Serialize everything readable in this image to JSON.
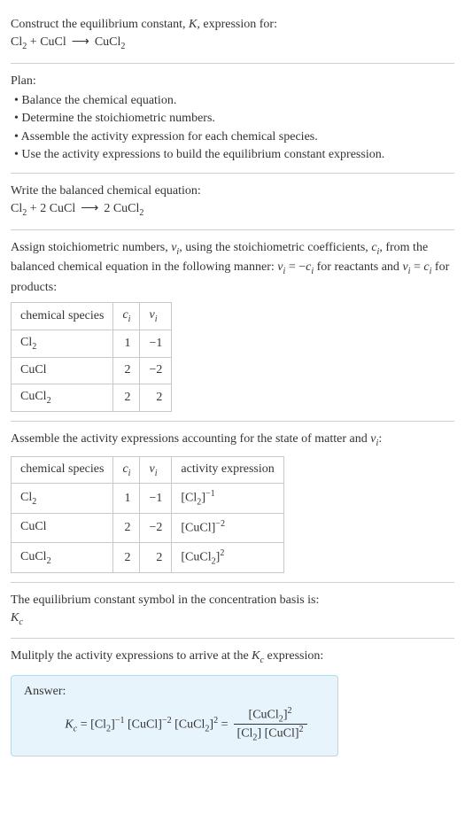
{
  "colors": {
    "text": "#333333",
    "border": "#d0d0d0",
    "tableBorder": "#c8c8c8",
    "answerBg": "#e8f4fb",
    "answerBorder": "#b8d8ea",
    "bg": "#ffffff"
  },
  "fonts": {
    "body": 14,
    "sub": 0.72
  },
  "header": {
    "prompt_prefix": "Construct the equilibrium constant, ",
    "K": "K",
    "prompt_suffix": ", expression for:",
    "eq_lhs_a": "Cl",
    "eq_lhs_a_sub": "2",
    "plus": " + ",
    "eq_lhs_b": "CuCl",
    "arrow": "⟶",
    "eq_rhs": "CuCl",
    "eq_rhs_sub": "2"
  },
  "plan": {
    "title": "Plan:",
    "items": [
      "Balance the chemical equation.",
      "Determine the stoichiometric numbers.",
      "Assemble the activity expression for each chemical species.",
      "Use the activity expressions to build the equilibrium constant expression."
    ]
  },
  "balanced": {
    "title": "Write the balanced chemical equation:",
    "a": "Cl",
    "a_sub": "2",
    "plus": " + ",
    "b_coef": "2 ",
    "b": "CuCl",
    "arrow": "⟶",
    "c_coef": "2 ",
    "c": "CuCl",
    "c_sub": "2"
  },
  "stoich": {
    "line1_a": "Assign stoichiometric numbers, ",
    "nu": "ν",
    "nu_sub": "i",
    "line1_b": ", using the stoichiometric coefficients, ",
    "c": "c",
    "c_sub": "i",
    "line1_c": ", from the balanced chemical equation in the following manner: ",
    "rel1_a": "ν",
    "rel1_b": " = −",
    "rel1_c": "c",
    "line1_d": " for reactants and ",
    "rel2_a": "ν",
    "rel2_b": " = ",
    "rel2_c": "c",
    "line1_e": " for products:",
    "table": {
      "h1": "chemical species",
      "h2_a": "c",
      "h2_b": "i",
      "h3_a": "ν",
      "h3_b": "i",
      "rows": [
        {
          "sp_a": "Cl",
          "sp_sub": "2",
          "ci": "1",
          "vi": "−1"
        },
        {
          "sp_a": "CuCl",
          "sp_sub": "",
          "ci": "2",
          "vi": "−2"
        },
        {
          "sp_a": "CuCl",
          "sp_sub": "2",
          "ci": "2",
          "vi": "2"
        }
      ]
    }
  },
  "activity": {
    "line_a": "Assemble the activity expressions accounting for the state of matter and ",
    "nu": "ν",
    "nu_sub": "i",
    "line_b": ":",
    "table": {
      "h1": "chemical species",
      "h2_a": "c",
      "h2_b": "i",
      "h3_a": "ν",
      "h3_b": "i",
      "h4": "activity expression",
      "rows": [
        {
          "sp_a": "Cl",
          "sp_sub": "2",
          "ci": "1",
          "vi": "−1",
          "ae_base_a": "[Cl",
          "ae_base_sub": "2",
          "ae_base_b": "]",
          "ae_exp": "−1"
        },
        {
          "sp_a": "CuCl",
          "sp_sub": "",
          "ci": "2",
          "vi": "−2",
          "ae_base_a": "[CuCl",
          "ae_base_sub": "",
          "ae_base_b": "]",
          "ae_exp": "−2"
        },
        {
          "sp_a": "CuCl",
          "sp_sub": "2",
          "ci": "2",
          "vi": "2",
          "ae_base_a": "[CuCl",
          "ae_base_sub": "2",
          "ae_base_b": "]",
          "ae_exp": "2"
        }
      ]
    }
  },
  "symbol": {
    "line": "The equilibrium constant symbol in the concentration basis is:",
    "K": "K",
    "K_sub": "c"
  },
  "final": {
    "line_a": "Mulitply the activity expressions to arrive at the ",
    "K": "K",
    "K_sub": "c",
    "line_b": " expression:",
    "answer_label": "Answer:",
    "expr": {
      "K": "K",
      "K_sub": "c",
      "eq": " = ",
      "t1_a": "[Cl",
      "t1_sub": "2",
      "t1_b": "]",
      "t1_exp": "−1",
      "sp": " ",
      "t2_a": "[CuCl]",
      "t2_exp": "−2",
      "t3_a": "[CuCl",
      "t3_sub": "2",
      "t3_b": "]",
      "t3_exp": "2",
      "eq2": " = ",
      "num_a": "[CuCl",
      "num_sub": "2",
      "num_b": "]",
      "num_exp": "2",
      "den1_a": "[Cl",
      "den1_sub": "2",
      "den1_b": "]",
      "den2_a": "[CuCl]",
      "den2_exp": "2"
    }
  }
}
